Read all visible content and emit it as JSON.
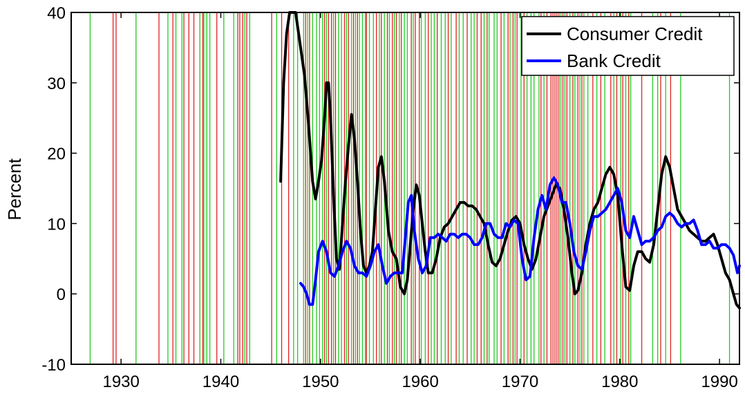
{
  "chart_data": {
    "type": "line",
    "title": "",
    "xlabel": "",
    "ylabel": "Percent",
    "xlim": [
      1925,
      1992
    ],
    "ylim": [
      -10,
      40
    ],
    "x_ticks": [
      1930,
      1940,
      1950,
      1960,
      1970,
      1980,
      1990
    ],
    "y_ticks": [
      -10,
      0,
      10,
      20,
      30,
      40
    ],
    "grid": false,
    "legend_position": "top-right",
    "colors": {
      "consumer": "#000000",
      "bank": "#0000ff",
      "red_event": "#e02020",
      "green_event": "#22cc22"
    },
    "event_lines": {
      "red": [
        1929.2,
        1929.5,
        1933.8,
        1935.2,
        1936.3,
        1936.8,
        1937.3,
        1938.2,
        1939.6,
        1941.7,
        1941.9,
        1942.2,
        1942.6,
        1945.1,
        1946.1,
        1946.8,
        1948.5,
        1948.9,
        1950.4,
        1950.8,
        1951.1,
        1951.5,
        1952.4,
        1952.8,
        1953.3,
        1953.7,
        1954.6,
        1955.6,
        1956.1,
        1956.7,
        1957.2,
        1957.6,
        1958.1,
        1959.1,
        1959.5,
        1959.9,
        1960.8,
        1961.7,
        1962.8,
        1963.6,
        1964.7,
        1965.7,
        1966.1,
        1966.7,
        1968.1,
        1968.8,
        1969.3,
        1969.7,
        1970.4,
        1972.1,
        1972.7,
        1973.1,
        1973.3,
        1973.5,
        1973.7,
        1973.9,
        1974.3,
        1974.7,
        1975.3,
        1975.8,
        1976.2,
        1977.3,
        1978.1,
        1979.1,
        1979.7,
        1980.3,
        1980.9,
        1982.2,
        1984.1,
        1985.1
      ],
      "green": [
        1926.9,
        1931.5,
        1934.7,
        1935.5,
        1936.1,
        1937.9,
        1938.3,
        1938.6,
        1938.9,
        1940.3,
        1941.3,
        1942.4,
        1942.9,
        1945.6,
        1947.3,
        1947.7,
        1948.3,
        1948.7,
        1949.2,
        1949.6,
        1949.9,
        1950.2,
        1950.6,
        1951.3,
        1951.8,
        1952.1,
        1952.6,
        1953.1,
        1953.5,
        1953.9,
        1954.2,
        1954.5,
        1954.9,
        1955.3,
        1955.9,
        1956.4,
        1956.9,
        1957.4,
        1957.9,
        1958.4,
        1958.7,
        1959.3,
        1960.1,
        1960.5,
        1961.1,
        1961.4,
        1962.1,
        1962.5,
        1963.1,
        1963.9,
        1964.3,
        1965.1,
        1965.4,
        1966.4,
        1966.9,
        1967.4,
        1967.7,
        1968.4,
        1969.0,
        1969.5,
        1970.1,
        1970.7,
        1971.1,
        1971.4,
        1971.9,
        1972.4,
        1974.1,
        1974.5,
        1975.0,
        1975.5,
        1976.0,
        1976.4,
        1976.8,
        1977.7,
        1978.5,
        1979.4,
        1980.1,
        1980.6,
        1981.1,
        1983.3,
        1983.8,
        1984.6,
        1986.1,
        1991.0
      ]
    },
    "series": [
      {
        "name": "Consumer Credit",
        "x": [
          1946.0,
          1946.3,
          1946.6,
          1946.9,
          1947.2,
          1947.5,
          1947.8,
          1948.1,
          1948.4,
          1948.8,
          1949.2,
          1949.5,
          1949.8,
          1950.1,
          1950.4,
          1950.6,
          1950.8,
          1951.0,
          1951.3,
          1951.6,
          1951.9,
          1952.2,
          1952.5,
          1952.8,
          1953.1,
          1953.4,
          1953.7,
          1954.0,
          1954.3,
          1954.6,
          1954.9,
          1955.2,
          1955.5,
          1955.8,
          1956.1,
          1956.4,
          1956.8,
          1957.2,
          1957.6,
          1958.0,
          1958.4,
          1958.7,
          1959.0,
          1959.3,
          1959.6,
          1959.9,
          1960.2,
          1960.5,
          1960.8,
          1961.2,
          1961.6,
          1962.0,
          1962.4,
          1962.8,
          1963.2,
          1963.6,
          1964.0,
          1964.4,
          1964.8,
          1965.2,
          1965.6,
          1966.0,
          1966.4,
          1966.8,
          1967.2,
          1967.6,
          1968.0,
          1968.4,
          1968.8,
          1969.2,
          1969.6,
          1970.0,
          1970.4,
          1970.8,
          1971.2,
          1971.6,
          1972.0,
          1972.4,
          1972.8,
          1973.2,
          1973.6,
          1974.0,
          1974.4,
          1974.8,
          1975.2,
          1975.5,
          1975.8,
          1976.2,
          1976.6,
          1977.0,
          1977.4,
          1977.8,
          1978.2,
          1978.6,
          1979.0,
          1979.4,
          1979.8,
          1980.2,
          1980.6,
          1981.0,
          1981.4,
          1981.8,
          1982.2,
          1982.6,
          1983.0,
          1983.4,
          1983.8,
          1984.2,
          1984.6,
          1985.0,
          1985.4,
          1985.8,
          1986.2,
          1986.6,
          1987.0,
          1987.4,
          1987.8,
          1988.2,
          1988.6,
          1989.0,
          1989.4,
          1989.8,
          1990.2,
          1990.6,
          1991.0,
          1991.4,
          1991.7,
          1992.0
        ],
        "y": [
          16,
          30,
          37,
          40,
          41,
          40,
          37,
          34,
          31,
          24,
          16,
          13.5,
          16,
          19,
          25,
          30,
          30,
          25,
          14,
          5,
          3.5,
          10,
          16,
          21,
          25.5,
          22,
          16,
          9,
          4,
          3,
          4,
          6,
          12,
          18,
          19.5,
          16,
          9,
          6,
          5,
          1,
          0,
          2,
          7,
          12,
          15.5,
          14,
          10,
          6,
          3,
          3,
          5,
          8,
          9.5,
          10,
          11,
          12,
          13,
          13,
          12.5,
          12.5,
          12,
          11,
          10,
          7,
          4.5,
          4,
          5,
          7,
          9,
          10.5,
          11,
          10,
          7,
          5,
          3.5,
          5,
          8,
          11,
          12.5,
          14,
          15.5,
          15,
          12,
          8,
          3,
          0,
          0.5,
          3,
          7,
          10,
          12,
          13,
          15,
          17,
          18,
          17,
          14,
          7,
          1,
          0.5,
          4,
          6,
          6,
          5,
          4.5,
          7,
          12,
          17,
          19.5,
          18,
          15,
          12,
          11,
          10,
          9,
          8.5,
          8,
          7.5,
          7.5,
          8,
          8.5,
          7,
          5,
          3,
          2,
          0,
          -1.5,
          -2
        ]
      },
      {
        "name": "Bank Credit",
        "x": [
          1948.0,
          1948.3,
          1948.6,
          1948.9,
          1949.2,
          1949.5,
          1949.8,
          1950.2,
          1950.6,
          1951.0,
          1951.4,
          1951.8,
          1952.2,
          1952.6,
          1953.0,
          1953.4,
          1953.8,
          1954.2,
          1954.6,
          1955.0,
          1955.4,
          1955.8,
          1956.2,
          1956.6,
          1957.0,
          1957.4,
          1957.8,
          1958.2,
          1958.5,
          1958.8,
          1959.1,
          1959.4,
          1959.8,
          1960.2,
          1960.6,
          1961.0,
          1961.4,
          1961.8,
          1962.2,
          1962.6,
          1963.0,
          1963.4,
          1963.8,
          1964.2,
          1964.6,
          1965.0,
          1965.4,
          1965.8,
          1966.2,
          1966.6,
          1967.0,
          1967.4,
          1967.8,
          1968.2,
          1968.6,
          1969.0,
          1969.4,
          1969.8,
          1970.2,
          1970.6,
          1971.0,
          1971.4,
          1971.8,
          1972.2,
          1972.6,
          1973.0,
          1973.4,
          1973.8,
          1974.2,
          1974.6,
          1975.0,
          1975.4,
          1975.8,
          1976.2,
          1976.6,
          1977.0,
          1977.4,
          1977.8,
          1978.2,
          1978.6,
          1979.0,
          1979.4,
          1979.8,
          1980.2,
          1980.6,
          1981.0,
          1981.4,
          1981.8,
          1982.2,
          1982.6,
          1983.0,
          1983.4,
          1983.8,
          1984.2,
          1984.6,
          1985.0,
          1985.4,
          1985.8,
          1986.2,
          1986.6,
          1987.0,
          1987.4,
          1987.8,
          1988.2,
          1988.6,
          1989.0,
          1989.4,
          1989.8,
          1990.2,
          1990.6,
          1991.0,
          1991.4,
          1991.8,
          1992.0
        ],
        "y": [
          1.5,
          1,
          0,
          -1.5,
          -1.5,
          2,
          6,
          7.5,
          6,
          3,
          2.5,
          4,
          6,
          7.5,
          6.5,
          4,
          3,
          3,
          2.5,
          4,
          6,
          7,
          4,
          1.5,
          2.5,
          3,
          3,
          3,
          8,
          13,
          14,
          9,
          5,
          3,
          4,
          8,
          8,
          8.5,
          8,
          7.5,
          8.5,
          8.5,
          8,
          8.5,
          8.5,
          8,
          7,
          7,
          8,
          10,
          10,
          8.5,
          8,
          8,
          10,
          9.5,
          10.5,
          10,
          5,
          2,
          2.5,
          8,
          12,
          14,
          12,
          15.5,
          16.5,
          15.5,
          13,
          13,
          10,
          6,
          4,
          3.5,
          6,
          9,
          11,
          11,
          11.5,
          12,
          13,
          14,
          15,
          13,
          9,
          8,
          11,
          9,
          7,
          7.5,
          7.5,
          8,
          9,
          9.5,
          11,
          11.5,
          11,
          10,
          9.5,
          10,
          10,
          10.5,
          9,
          7,
          7,
          7.5,
          6.5,
          6.5,
          7,
          7,
          6.5,
          5.5,
          3,
          4
        ]
      }
    ]
  }
}
